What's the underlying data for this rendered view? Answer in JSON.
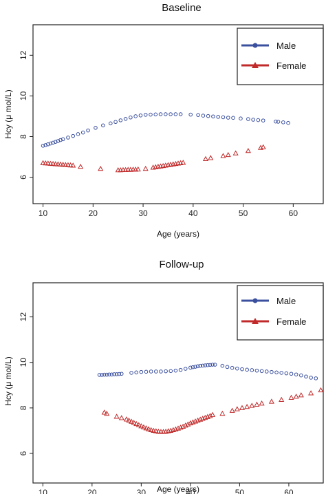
{
  "colors": {
    "male": "#3a4f9e",
    "female": "#c02a2a"
  },
  "chart_data": [
    {
      "type": "scatter",
      "title": "Baseline",
      "xlabel": "Age (years)",
      "ylabel": "Hcy (μ mol/L)",
      "xlim": [
        8,
        66
      ],
      "ylim": [
        4.7,
        13.5
      ],
      "xticks": [
        10,
        20,
        30,
        40,
        50,
        60
      ],
      "yticks": [
        6,
        8,
        10,
        12
      ],
      "legend_position": "top-right",
      "series": [
        {
          "name": "Male",
          "marker": "circle",
          "x": [
            10,
            10.5,
            11,
            11.5,
            12,
            12.5,
            13,
            13.5,
            14,
            15,
            16,
            17,
            18,
            19,
            20.5,
            22,
            23.5,
            24.5,
            25.5,
            26.5,
            27.5,
            28.5,
            29.5,
            30.5,
            31.5,
            32.5,
            33.5,
            34.5,
            35.5,
            36.5,
            37.5,
            39.5,
            41,
            42,
            43,
            44,
            45,
            46,
            47,
            48,
            49.5,
            51,
            52,
            53,
            54,
            56.5,
            57,
            58,
            59
          ],
          "y": [
            7.55,
            7.58,
            7.62,
            7.66,
            7.7,
            7.74,
            7.78,
            7.83,
            7.87,
            7.95,
            8.03,
            8.12,
            8.2,
            8.3,
            8.43,
            8.55,
            8.65,
            8.72,
            8.8,
            8.87,
            8.94,
            9.0,
            9.04,
            9.07,
            9.08,
            9.09,
            9.1,
            9.1,
            9.1,
            9.1,
            9.1,
            9.08,
            9.06,
            9.03,
            9.01,
            8.99,
            8.97,
            8.95,
            8.93,
            8.92,
            8.89,
            8.86,
            8.83,
            8.81,
            8.79,
            8.74,
            8.73,
            8.7,
            8.67
          ]
        },
        {
          "name": "Female",
          "marker": "triangle",
          "x": [
            10,
            10.5,
            11,
            11.5,
            12,
            12.5,
            13,
            13.5,
            14,
            14.5,
            15,
            15.5,
            16,
            17.5,
            21.5,
            25,
            25.5,
            26,
            26.5,
            27,
            27.5,
            28,
            28.5,
            29,
            30.5,
            32,
            32.5,
            33,
            33.5,
            34,
            34.5,
            35,
            35.5,
            36,
            36.5,
            37,
            37.5,
            38,
            42.5,
            43.5,
            46,
            47,
            48.5,
            51,
            53.5,
            54
          ],
          "y": [
            6.7,
            6.69,
            6.68,
            6.67,
            6.66,
            6.65,
            6.64,
            6.63,
            6.62,
            6.61,
            6.6,
            6.59,
            6.58,
            6.52,
            6.42,
            6.35,
            6.35,
            6.36,
            6.36,
            6.37,
            6.37,
            6.38,
            6.38,
            6.39,
            6.42,
            6.48,
            6.5,
            6.52,
            6.54,
            6.56,
            6.58,
            6.6,
            6.62,
            6.64,
            6.66,
            6.68,
            6.7,
            6.72,
            6.9,
            6.95,
            7.05,
            7.1,
            7.18,
            7.3,
            7.45,
            7.48
          ]
        }
      ]
    },
    {
      "type": "scatter",
      "title": "Follow-up",
      "xlabel": "Age (years)",
      "ylabel": "Hcy (μ mol/L)",
      "xlim": [
        8,
        67
      ],
      "ylim": [
        4.7,
        13.5
      ],
      "xticks": [
        10,
        20,
        30,
        40,
        50,
        60
      ],
      "yticks": [
        6,
        8,
        10,
        12
      ],
      "legend_position": "top-right",
      "series": [
        {
          "name": "Male",
          "marker": "circle",
          "x": [
            21.5,
            22,
            22.5,
            23,
            23.5,
            24,
            24.5,
            25,
            25.5,
            26,
            28,
            29,
            30,
            31,
            32,
            33,
            34,
            35,
            36,
            37,
            38,
            39,
            40,
            40.5,
            41,
            41.5,
            42,
            42.5,
            43,
            43.5,
            44,
            44.5,
            45,
            46.5,
            47.5,
            48.5,
            49.5,
            50.5,
            51.5,
            52.5,
            53.5,
            54.5,
            55.5,
            56.5,
            57.5,
            58.5,
            59.5,
            60.5,
            61.5,
            62.5,
            63.5,
            64.5,
            65.5
          ],
          "y": [
            9.45,
            9.45,
            9.46,
            9.46,
            9.47,
            9.47,
            9.48,
            9.48,
            9.49,
            9.5,
            9.54,
            9.56,
            9.58,
            9.59,
            9.6,
            9.6,
            9.6,
            9.61,
            9.62,
            9.64,
            9.67,
            9.72,
            9.77,
            9.79,
            9.81,
            9.83,
            9.85,
            9.86,
            9.87,
            9.88,
            9.89,
            9.9,
            9.9,
            9.85,
            9.8,
            9.76,
            9.73,
            9.7,
            9.68,
            9.66,
            9.64,
            9.62,
            9.6,
            9.58,
            9.56,
            9.54,
            9.52,
            9.5,
            9.47,
            9.43,
            9.38,
            9.33,
            9.3
          ]
        },
        {
          "name": "Female",
          "marker": "triangle",
          "x": [
            22.5,
            23,
            25,
            26,
            27,
            27.5,
            28,
            28.5,
            29,
            29.5,
            30,
            30.5,
            31,
            31.5,
            32,
            32.5,
            33,
            33.5,
            34,
            34.5,
            35,
            35.5,
            36,
            36.5,
            37,
            37.5,
            38,
            38.5,
            39,
            39.5,
            40,
            40.5,
            41,
            41.5,
            42,
            42.5,
            43,
            43.5,
            44,
            44.5,
            46.5,
            48.5,
            49.5,
            50.5,
            51.5,
            52.5,
            53.5,
            54.5,
            56.5,
            58.5,
            60.5,
            61.5,
            62.5,
            64.5,
            66.5
          ],
          "y": [
            7.8,
            7.75,
            7.62,
            7.56,
            7.5,
            7.45,
            7.4,
            7.35,
            7.3,
            7.25,
            7.2,
            7.15,
            7.11,
            7.07,
            7.03,
            7.0,
            6.98,
            6.96,
            6.95,
            6.95,
            6.96,
            6.98,
            7.0,
            7.03,
            7.06,
            7.1,
            7.14,
            7.18,
            7.23,
            7.28,
            7.33,
            7.37,
            7.41,
            7.45,
            7.49,
            7.53,
            7.57,
            7.61,
            7.65,
            7.7,
            7.75,
            7.88,
            7.95,
            8.0,
            8.05,
            8.1,
            8.15,
            8.2,
            8.28,
            8.36,
            8.45,
            8.5,
            8.56,
            8.65,
            8.78
          ]
        }
      ]
    }
  ]
}
